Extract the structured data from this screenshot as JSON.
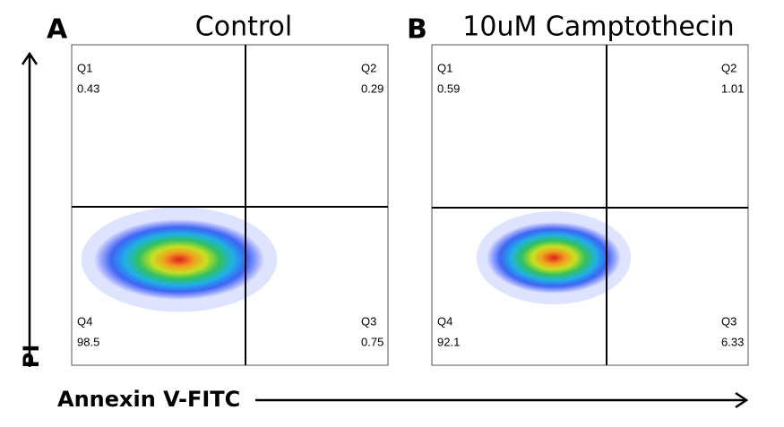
{
  "x_label": "Annexin V-FITC",
  "y_label": "PI",
  "chart_data": [
    {
      "type": "quadrant",
      "label": "A",
      "title": "Control",
      "categories": [
        "Q1",
        "Q2",
        "Q3",
        "Q4"
      ],
      "values": [
        0.43,
        0.29,
        0.75,
        98.5
      ]
    },
    {
      "type": "quadrant",
      "label": "B",
      "title": "10uM Camptothecin",
      "categories": [
        "Q1",
        "Q2",
        "Q3",
        "Q4"
      ],
      "values": [
        0.59,
        1.01,
        6.33,
        92.1
      ]
    }
  ]
}
